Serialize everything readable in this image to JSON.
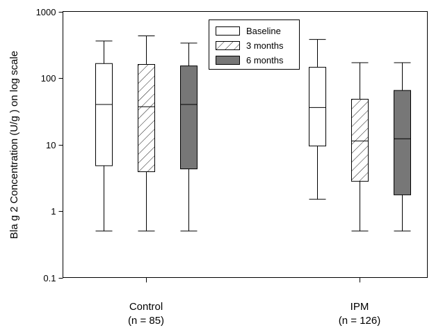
{
  "chart_data": {
    "type": "box",
    "ylabel": "Bla g 2 Concentration (U/g ) on log scale",
    "yscale": "log",
    "ylim": [
      0.1,
      1000
    ],
    "yticks": [
      {
        "value": 0.1,
        "label": "0.1"
      },
      {
        "value": 1,
        "label": "1"
      },
      {
        "value": 10,
        "label": "10"
      },
      {
        "value": 100,
        "label": "100"
      },
      {
        "value": 1000,
        "label": "1000"
      }
    ],
    "groups": [
      {
        "name": "Control",
        "n_label": "(n = 85)"
      },
      {
        "name": "IPM",
        "n_label": "(n = 126)"
      }
    ],
    "legend": {
      "position": "top-center",
      "items": [
        {
          "label": "Baseline",
          "fill": "white"
        },
        {
          "label": "3 months",
          "fill": "hatched"
        },
        {
          "label": "6 months",
          "fill": "#777777"
        }
      ]
    },
    "series": [
      {
        "name": "Baseline",
        "boxes": [
          {
            "group": "Control",
            "min": 0.5,
            "q1": 4.8,
            "median": 40,
            "q3": 165,
            "max": 360
          },
          {
            "group": "IPM",
            "min": 1.5,
            "q1": 9.5,
            "median": 36,
            "q3": 145,
            "max": 380
          }
        ]
      },
      {
        "name": "3 months",
        "boxes": [
          {
            "group": "Control",
            "min": 0.5,
            "q1": 3.9,
            "median": 37,
            "q3": 160,
            "max": 430
          },
          {
            "group": "IPM",
            "min": 0.5,
            "q1": 2.8,
            "median": 11.3,
            "q3": 48,
            "max": 170
          }
        ]
      },
      {
        "name": "6 months",
        "boxes": [
          {
            "group": "Control",
            "min": 0.5,
            "q1": 4.3,
            "median": 40,
            "q3": 152,
            "max": 335
          },
          {
            "group": "IPM",
            "min": 0.5,
            "q1": 1.75,
            "median": 12.2,
            "q3": 65,
            "max": 170
          }
        ]
      }
    ]
  }
}
